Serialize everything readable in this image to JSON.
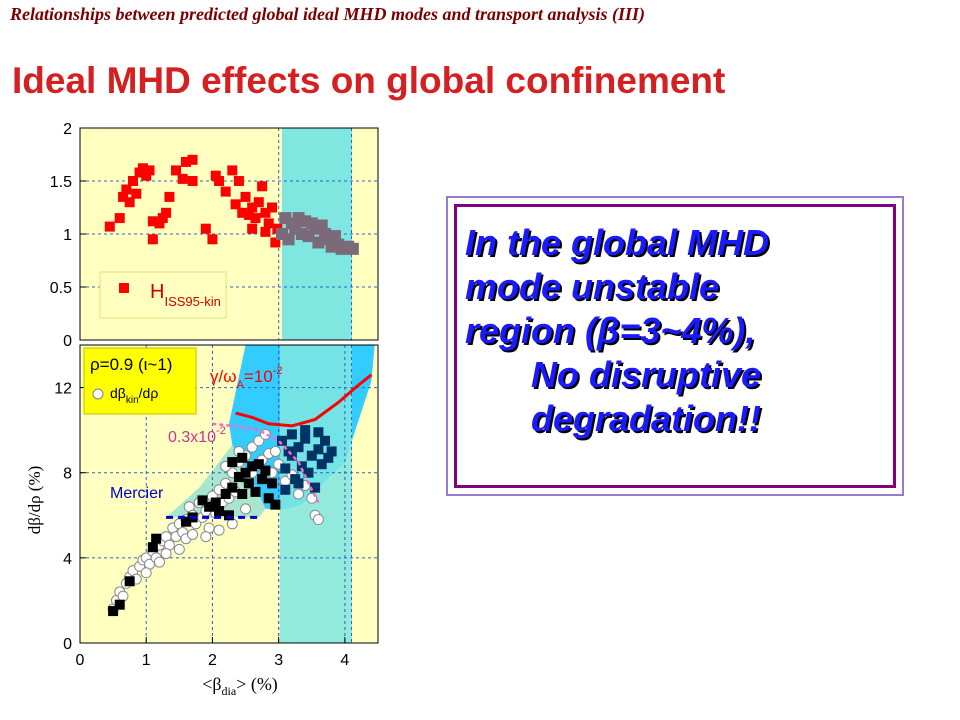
{
  "header": "Relationships between predicted global ideal MHD modes and transport analysis (III)",
  "title": "Ideal MHD effects on global confinement",
  "callout": {
    "lines": [
      "In the global MHD",
      "mode unstable",
      "region (β=3~4%),",
      "No disruptive",
      "degradation!!"
    ]
  },
  "colors": {
    "header": "#7a0000",
    "title": "#d42020",
    "callout_text": "#1a1aff",
    "callout_border": "#800080",
    "plot_bg": "#ffffc0",
    "unstable_band": "#7fe6e0",
    "stability_region": "#33ccff",
    "data_red": "#ff0000",
    "data_black": "#000000",
    "data_navy": "#003366",
    "data_gray": "#7a6a7a",
    "growth_curve": "#ff0000",
    "growth_curve_small": "#ff66cc",
    "mercier": "#0000cc",
    "legend_box": "#ffff00"
  },
  "chart_data": [
    {
      "type": "scatter",
      "ylim": [
        0,
        2
      ],
      "yticks": [
        "0",
        "0.5",
        "1",
        "1.5",
        "2"
      ],
      "band": [
        3,
        4.1
      ],
      "series": [
        {
          "name": "H",
          "subscript": "ISS95-kin",
          "color": "red",
          "points": [
            [
              0.45,
              1.07
            ],
            [
              0.6,
              1.15
            ],
            [
              0.65,
              1.35
            ],
            [
              0.7,
              1.42
            ],
            [
              0.75,
              1.3
            ],
            [
              0.8,
              1.5
            ],
            [
              0.85,
              1.38
            ],
            [
              0.9,
              1.58
            ],
            [
              0.95,
              1.62
            ],
            [
              1.0,
              1.55
            ],
            [
              1.05,
              1.6
            ],
            [
              1.1,
              1.12
            ],
            [
              1.1,
              0.95
            ],
            [
              1.2,
              1.1
            ],
            [
              1.25,
              1.15
            ],
            [
              1.3,
              1.2
            ],
            [
              1.35,
              1.35
            ],
            [
              1.45,
              1.6
            ],
            [
              1.55,
              1.52
            ],
            [
              1.6,
              1.68
            ],
            [
              1.7,
              1.7
            ],
            [
              1.7,
              1.5
            ],
            [
              1.9,
              1.05
            ],
            [
              2.0,
              0.95
            ],
            [
              2.05,
              1.55
            ],
            [
              2.1,
              1.5
            ],
            [
              2.2,
              1.4
            ],
            [
              2.3,
              1.6
            ],
            [
              2.4,
              1.5
            ],
            [
              2.35,
              1.28
            ],
            [
              2.45,
              1.2
            ],
            [
              2.5,
              1.35
            ],
            [
              2.55,
              1.18
            ],
            [
              2.6,
              1.25
            ],
            [
              2.6,
              1.05
            ],
            [
              2.65,
              1.15
            ],
            [
              2.7,
              1.3
            ],
            [
              2.75,
              1.45
            ],
            [
              2.8,
              1.2
            ],
            [
              2.8,
              1.02
            ],
            [
              2.85,
              1.1
            ],
            [
              2.9,
              1.25
            ],
            [
              2.95,
              0.92
            ],
            [
              2.98,
              1.05
            ]
          ]
        },
        {
          "name": "unstable",
          "color": "gray",
          "points": [
            [
              3.05,
              1.0
            ],
            [
              3.1,
              1.15
            ],
            [
              3.15,
              0.95
            ],
            [
              3.2,
              1.1
            ],
            [
              3.25,
              1.05
            ],
            [
              3.3,
              1.15
            ],
            [
              3.35,
              1.0
            ],
            [
              3.4,
              1.12
            ],
            [
              3.45,
              0.98
            ],
            [
              3.5,
              1.1
            ],
            [
              3.55,
              1.05
            ],
            [
              3.6,
              0.92
            ],
            [
              3.65,
              1.08
            ],
            [
              3.7,
              1.0
            ],
            [
              3.75,
              0.95
            ],
            [
              3.8,
              0.88
            ],
            [
              3.85,
              0.98
            ],
            [
              3.9,
              0.9
            ],
            [
              3.95,
              0.86
            ],
            [
              4.05,
              0.88
            ],
            [
              4.12,
              0.86
            ]
          ]
        }
      ]
    },
    {
      "type": "scatter",
      "xlabel_main": "<β",
      "xlabel_sub": "dia",
      "xlabel_end": "> (%)",
      "ylabel": "dβ/dρ (%)",
      "xlim": [
        0,
        4.5
      ],
      "ylim": [
        0,
        14
      ],
      "xticks": [
        "0",
        "1",
        "2",
        "3",
        "4"
      ],
      "yticks": [
        "0",
        "4",
        "8",
        "12"
      ],
      "band": [
        3,
        4.1
      ],
      "legend": {
        "line1": "ρ=0.9 (ι~1)",
        "line2_main": "dβ",
        "line2_sub": "kin",
        "line2_end": "/dρ"
      },
      "annotations": {
        "growth_large_a": "γ/ω",
        "growth_large_sub": "A",
        "growth_large_b": "=10",
        "growth_large_exp": "-2",
        "growth_small": "0.3x10",
        "growth_small_exp": "-2",
        "mercier": "Mercier"
      },
      "growth_curve": [
        [
          2.35,
          10.8
        ],
        [
          2.6,
          10.6
        ],
        [
          2.85,
          10.3
        ],
        [
          3.2,
          10.2
        ],
        [
          3.55,
          10.5
        ],
        [
          3.9,
          11.3
        ],
        [
          4.2,
          12.1
        ],
        [
          4.4,
          12.6
        ]
      ],
      "growth_curve_small": [
        [
          2.0,
          10.3
        ],
        [
          2.3,
          10.2
        ],
        [
          2.7,
          10.0
        ],
        [
          3.0,
          9.5
        ],
        [
          3.3,
          8.5
        ],
        [
          3.5,
          7.2
        ],
        [
          3.6,
          6.6
        ]
      ],
      "mercier_line": [
        [
          1.3,
          5.9
        ],
        [
          2.7,
          5.9
        ]
      ],
      "series": [
        {
          "name": "dβkin/dρ",
          "marker": "open-circle",
          "points": [
            [
              0.5,
              1.6
            ],
            [
              0.55,
              2.0
            ],
            [
              0.6,
              2.4
            ],
            [
              0.65,
              2.2
            ],
            [
              0.7,
              2.8
            ],
            [
              0.75,
              3.1
            ],
            [
              0.8,
              3.4
            ],
            [
              0.85,
              3.0
            ],
            [
              0.9,
              3.6
            ],
            [
              0.95,
              3.9
            ],
            [
              1.0,
              4.0
            ],
            [
              1.05,
              3.7
            ],
            [
              1.1,
              4.3
            ],
            [
              1.15,
              4.0
            ],
            [
              1.2,
              4.6
            ],
            [
              1.25,
              4.8
            ],
            [
              1.3,
              5.0
            ],
            [
              1.35,
              4.6
            ],
            [
              1.4,
              5.4
            ],
            [
              1.45,
              5.0
            ],
            [
              1.5,
              5.6
            ],
            [
              1.55,
              5.2
            ],
            [
              1.6,
              5.8
            ],
            [
              1.65,
              6.4
            ],
            [
              1.7,
              6.0
            ],
            [
              1.75,
              5.6
            ],
            [
              1.8,
              6.6
            ],
            [
              1.85,
              5.9
            ],
            [
              1.9,
              6.2
            ],
            [
              1.95,
              5.4
            ],
            [
              2.0,
              6.9
            ],
            [
              2.05,
              6.1
            ],
            [
              2.1,
              7.2
            ],
            [
              2.15,
              6.6
            ],
            [
              2.2,
              7.5
            ],
            [
              2.25,
              6.8
            ],
            [
              2.3,
              8.0
            ],
            [
              2.35,
              7.1
            ],
            [
              2.4,
              8.5
            ],
            [
              2.45,
              7.8
            ],
            [
              2.5,
              8.8
            ],
            [
              2.55,
              7.9
            ],
            [
              2.6,
              9.2
            ],
            [
              2.65,
              8.3
            ],
            [
              2.7,
              9.5
            ],
            [
              2.75,
              8.6
            ],
            [
              2.8,
              9.8
            ],
            [
              2.85,
              8.9
            ],
            [
              2.9,
              8.0
            ],
            [
              2.95,
              9.0
            ],
            [
              3.0,
              8.4
            ],
            [
              3.1,
              7.6
            ],
            [
              3.2,
              7.9
            ],
            [
              3.3,
              7.0
            ],
            [
              3.4,
              7.4
            ],
            [
              3.5,
              6.8
            ],
            [
              3.55,
              6.0
            ],
            [
              3.6,
              5.8
            ],
            [
              1.5,
              4.4
            ],
            [
              1.6,
              4.9
            ],
            [
              1.7,
              5.1
            ],
            [
              1.9,
              5.0
            ],
            [
              2.1,
              5.3
            ],
            [
              2.3,
              5.6
            ],
            [
              2.5,
              6.3
            ],
            [
              1.2,
              3.8
            ],
            [
              1.3,
              4.2
            ],
            [
              1.0,
              3.3
            ],
            [
              2.2,
              8.3
            ],
            [
              2.4,
              9.0
            ],
            [
              2.6,
              8.0
            ]
          ]
        },
        {
          "name": "black",
          "marker": "filled-square",
          "points": [
            [
              0.5,
              1.5
            ],
            [
              0.6,
              1.8
            ],
            [
              0.75,
              2.9
            ],
            [
              1.1,
              4.5
            ],
            [
              1.15,
              4.9
            ],
            [
              1.6,
              5.7
            ],
            [
              1.7,
              5.9
            ],
            [
              1.85,
              6.7
            ],
            [
              1.95,
              6.4
            ],
            [
              2.05,
              6.6
            ],
            [
              2.1,
              6.2
            ],
            [
              2.2,
              7.0
            ],
            [
              2.25,
              6.0
            ],
            [
              2.3,
              7.3
            ],
            [
              2.4,
              7.8
            ],
            [
              2.45,
              7.0
            ],
            [
              2.5,
              8.0
            ],
            [
              2.55,
              7.5
            ],
            [
              2.6,
              8.3
            ],
            [
              2.65,
              7.1
            ],
            [
              2.7,
              8.4
            ],
            [
              2.75,
              7.7
            ],
            [
              2.8,
              8.1
            ],
            [
              2.85,
              6.8
            ],
            [
              2.9,
              7.5
            ],
            [
              2.95,
              6.5
            ],
            [
              2.3,
              8.5
            ],
            [
              2.45,
              8.7
            ]
          ]
        },
        {
          "name": "navy",
          "marker": "filled-square",
          "points": [
            [
              3.05,
              9.5
            ],
            [
              3.1,
              8.2
            ],
            [
              3.15,
              9.0
            ],
            [
              3.2,
              8.8
            ],
            [
              3.25,
              7.7
            ],
            [
              3.3,
              9.2
            ],
            [
              3.35,
              8.3
            ],
            [
              3.4,
              9.6
            ],
            [
              3.45,
              8.0
            ],
            [
              3.5,
              8.8
            ],
            [
              3.55,
              7.3
            ],
            [
              3.6,
              9.1
            ],
            [
              3.65,
              8.4
            ],
            [
              3.7,
              9.5
            ],
            [
              3.75,
              8.7
            ],
            [
              3.8,
              9.0
            ],
            [
              3.2,
              9.8
            ],
            [
              3.4,
              10.0
            ],
            [
              3.6,
              9.9
            ],
            [
              3.1,
              7.2
            ],
            [
              3.3,
              7.5
            ]
          ]
        }
      ]
    }
  ]
}
